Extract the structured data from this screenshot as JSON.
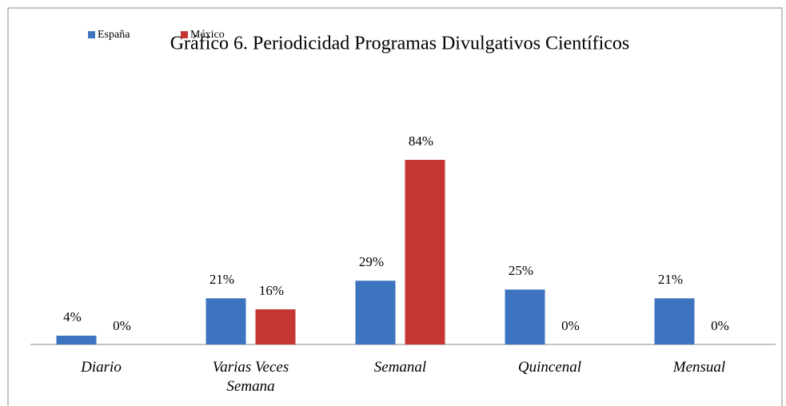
{
  "chart_data": {
    "type": "bar",
    "title": "Gráfico 6.  Periodicidad Programas Divulgativos Científicos",
    "categories": [
      "Diario",
      "Varias Veces Semana",
      "Semanal",
      "Quincenal",
      "Mensual"
    ],
    "series": [
      {
        "name": "España",
        "color": "#3d74c0",
        "values": [
          4,
          21,
          29,
          25,
          21
        ],
        "value_labels": [
          "4%",
          "21%",
          "29%",
          "25%",
          "21%"
        ]
      },
      {
        "name": "México",
        "color": "#c43533",
        "values": [
          0,
          16,
          84,
          0,
          0
        ],
        "value_labels": [
          "0%",
          "16%",
          "84%",
          "0%",
          "0%"
        ]
      }
    ],
    "legend": "top-left"
  }
}
